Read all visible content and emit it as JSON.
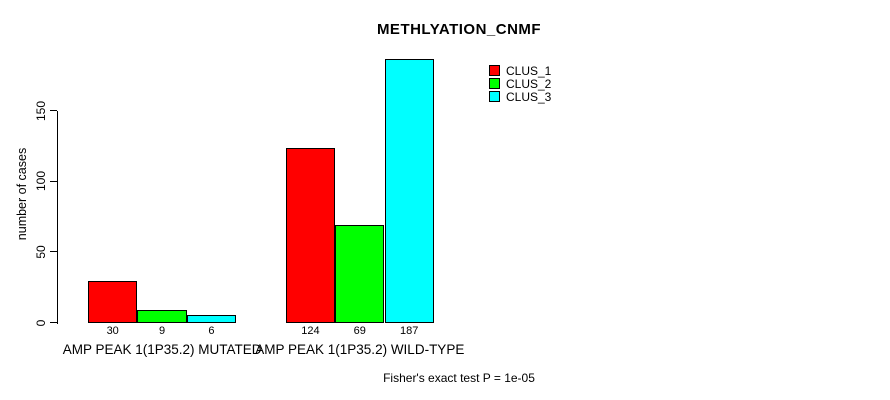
{
  "chart_data": {
    "type": "bar",
    "title": "METHLYATION_CNMF",
    "ylabel": "number of cases",
    "xlabel": "",
    "footer": "Fisher's exact test P = 1e-05",
    "ylim": [
      0,
      150
    ],
    "yticks": [
      0,
      50,
      100,
      150
    ],
    "grid": false,
    "legend_position": "top-right",
    "bar_value_labels_shown": true,
    "categories": [
      "AMP PEAK 1(1P35.2) MUTATED",
      "AMP PEAK 1(1P35.2) WILD-TYPE"
    ],
    "series": [
      {
        "name": "CLUS_1",
        "color": "#ff0000",
        "values": [
          30,
          124
        ]
      },
      {
        "name": "CLUS_2",
        "color": "#00ff00",
        "values": [
          9,
          69
        ]
      },
      {
        "name": "CLUS_3",
        "color": "#00ffff",
        "values": [
          6,
          187
        ]
      }
    ],
    "colors": {
      "background": "#ffffff",
      "text": "#000000",
      "axis": "#000000",
      "bar_border": "#000000"
    }
  }
}
